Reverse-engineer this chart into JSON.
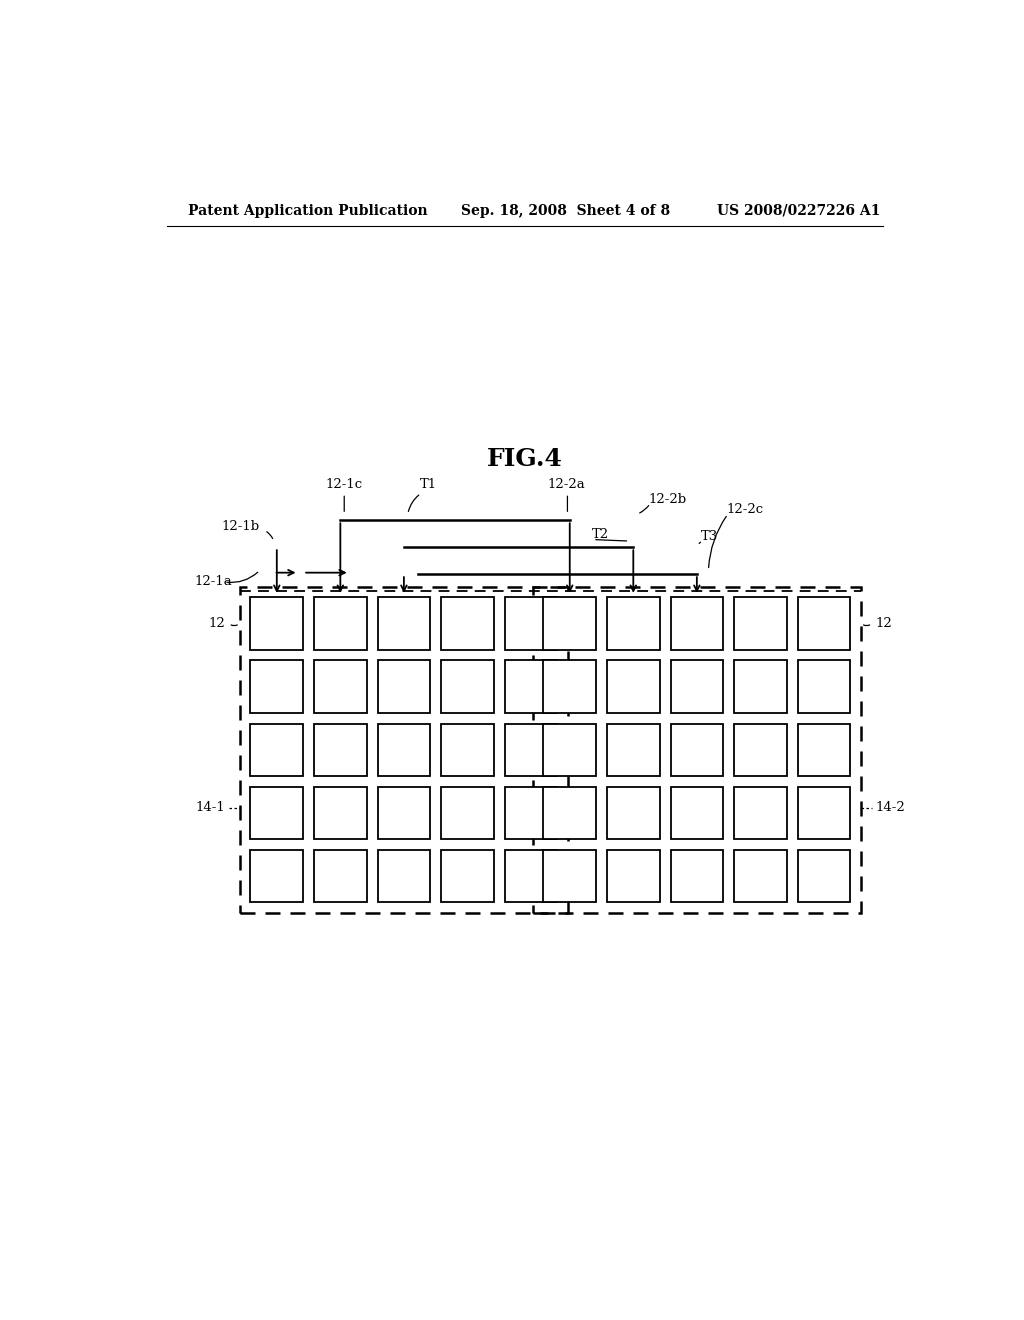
{
  "fig_label": "FIG.4",
  "header_left": "Patent Application Publication",
  "header_center": "Sep. 18, 2008  Sheet 4 of 8",
  "header_right": "US 2008/0227226 A1",
  "background_color": "#ffffff",
  "fig_label_fontsize": 18,
  "header_fontsize": 10,
  "label_fontsize": 9.5
}
